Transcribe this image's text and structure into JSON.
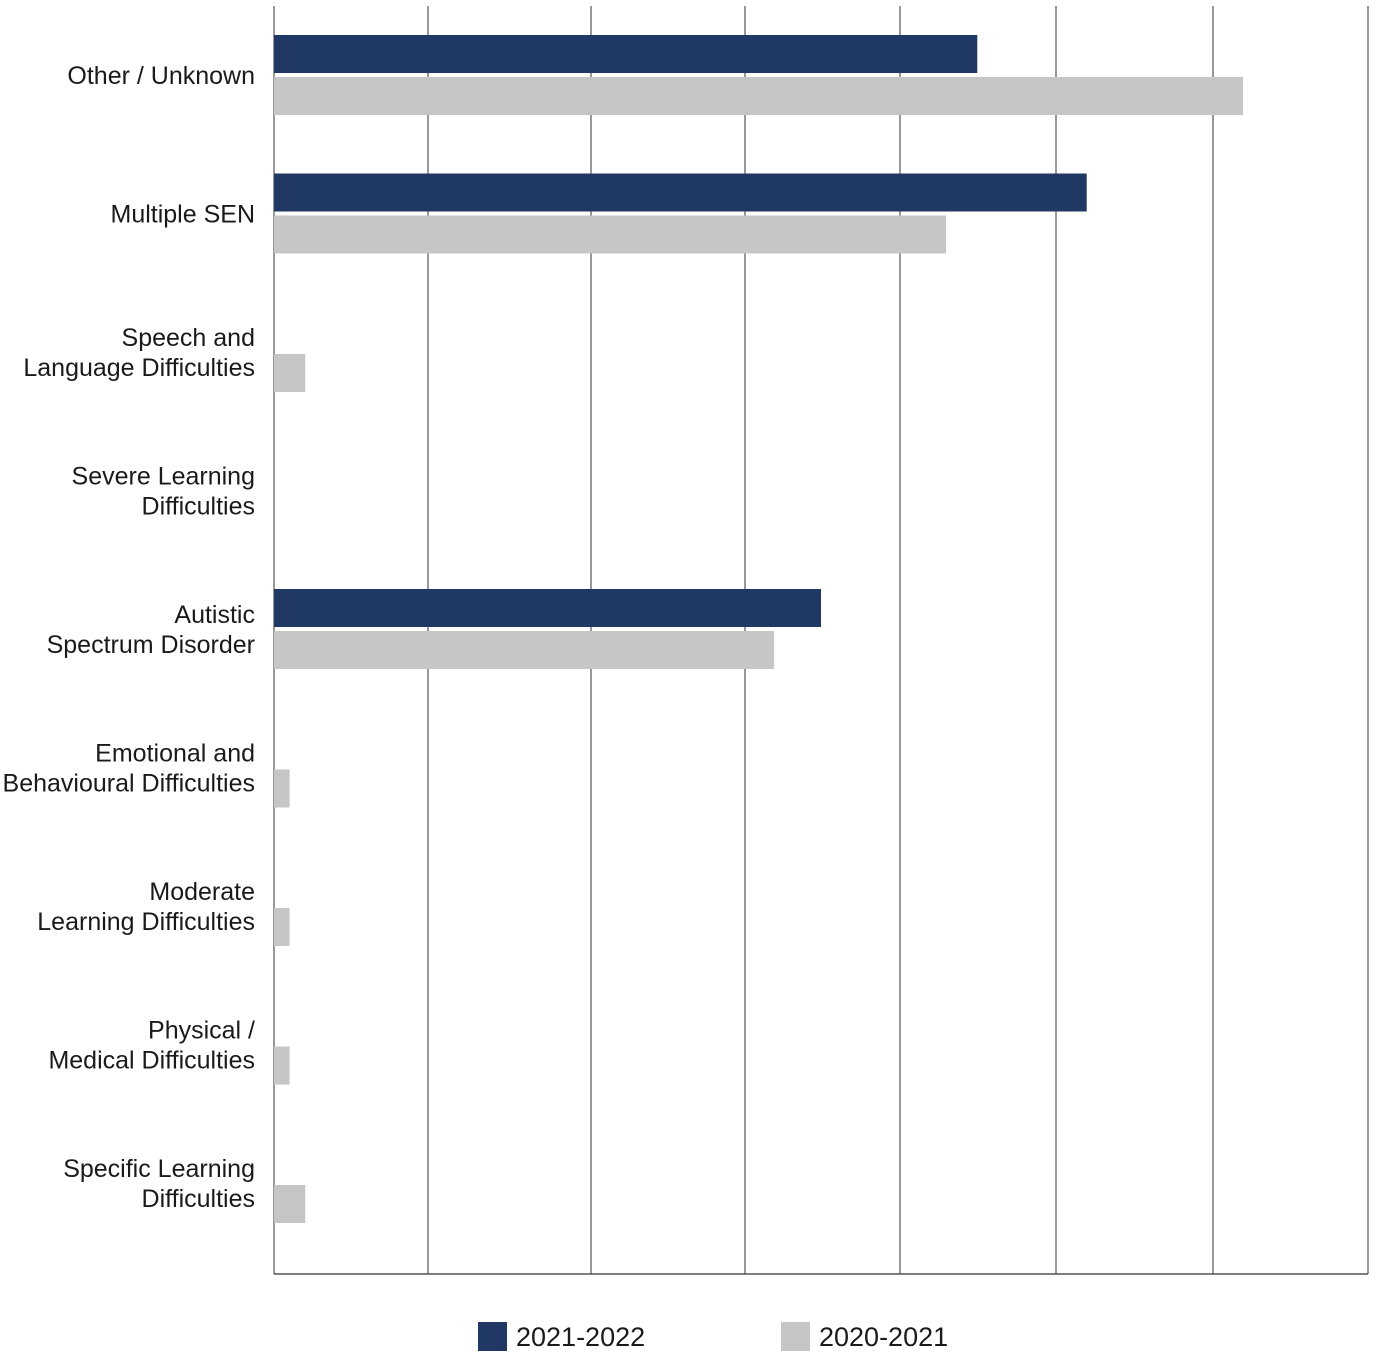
{
  "chart_data": {
    "type": "bar",
    "orientation": "horizontal",
    "categories": [
      [
        "Other / Unknown"
      ],
      [
        "Multiple SEN"
      ],
      [
        "Speech and",
        "Language Difficulties"
      ],
      [
        "Severe Learning",
        "Difficulties"
      ],
      [
        "Autistic",
        "Spectrum Disorder"
      ],
      [
        "Emotional and",
        "Behavioural Difficulties"
      ],
      [
        "Moderate",
        "Learning Difficulties"
      ],
      [
        "Physical /",
        "Medical Difficulties"
      ],
      [
        "Specific Learning",
        "Difficulties"
      ]
    ],
    "series": [
      {
        "name": "2021-2022",
        "color": "#1f3864",
        "values": [
          45,
          52,
          0,
          0,
          35,
          0,
          0,
          0,
          0
        ]
      },
      {
        "name": "2020-2021",
        "color": "#c6c6c6",
        "values": [
          62,
          43,
          2,
          0,
          32,
          1,
          1,
          1,
          2
        ]
      }
    ],
    "xlim": [
      0,
      70
    ],
    "grid": true,
    "legend_position": "bottom"
  }
}
